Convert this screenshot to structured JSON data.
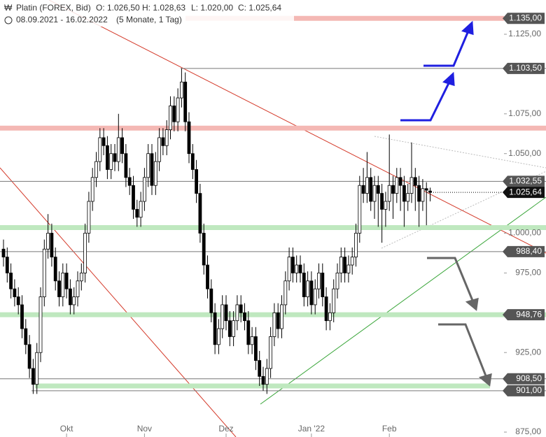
{
  "chart_data": {
    "type": "candlestick",
    "title": "Platin (FOREX, Bid)",
    "info_labels": [
      "O: 1.026,50",
      "H: 1.028,63",
      "L: 1.020,00",
      "C: 1.025,64"
    ],
    "range": "08.09.2021 - 16.02.2022",
    "interval": "(5 Monate, 1 Tag)",
    "ylim": [
      875,
      1135
    ],
    "yticks": [
      {
        "value": 875,
        "label": "875,00"
      },
      {
        "value": 925,
        "label": "925,00"
      },
      {
        "value": 975,
        "label": "975,00"
      },
      {
        "value": 1000,
        "label": "1.000,00"
      },
      {
        "value": 1050,
        "label": "1.050,00"
      },
      {
        "value": 1075,
        "label": "1.075,00"
      },
      {
        "value": 1125,
        "label": "1.125,00"
      }
    ],
    "xticks": [
      {
        "value": 17,
        "label": "Okt"
      },
      {
        "value": 38,
        "label": "Nov"
      },
      {
        "value": 60,
        "label": "Dez"
      },
      {
        "value": 83,
        "label": "Jan '22"
      },
      {
        "value": 104,
        "label": "Feb"
      }
    ],
    "up_color": "#ffffff",
    "down_color": "#000000",
    "price_label": "1.025,64",
    "levels": [
      {
        "value": 1135,
        "label": "1.135,00",
        "kind": "resistance"
      },
      {
        "value": 1103.5,
        "label": "1.103,50",
        "kind": "line"
      },
      {
        "value": 1066,
        "kind": "resistance"
      },
      {
        "value": 1032.55,
        "label": "1.032,55",
        "kind": "line"
      },
      {
        "value": 1003.5,
        "kind": "support"
      },
      {
        "value": 988.4,
        "label": "988,40",
        "kind": "line"
      },
      {
        "value": 948.76,
        "label": "948,76",
        "kind": "support"
      },
      {
        "value": 908.5,
        "label": "908,50",
        "kind": "line"
      },
      {
        "value": 904,
        "kind": "support"
      },
      {
        "value": 901,
        "label": "901,00",
        "kind": "line"
      }
    ],
    "ohlc": [
      [
        990,
        996,
        979,
        985
      ],
      [
        985,
        991,
        969,
        975
      ],
      [
        975,
        981,
        959,
        965
      ],
      [
        965,
        971,
        954,
        960
      ],
      [
        960,
        966,
        949,
        955
      ],
      [
        955,
        961,
        934,
        940
      ],
      [
        940,
        946,
        924,
        930
      ],
      [
        930,
        936,
        909,
        915
      ],
      [
        915,
        921,
        899,
        905
      ],
      [
        905,
        931,
        899,
        925
      ],
      [
        925,
        966,
        919,
        960
      ],
      [
        960,
        996,
        954,
        990
      ],
      [
        990,
        1012,
        984,
        1000
      ],
      [
        1000,
        1006,
        979,
        985
      ],
      [
        985,
        991,
        964,
        970
      ],
      [
        970,
        976,
        954,
        960
      ],
      [
        960,
        981,
        954,
        975
      ],
      [
        975,
        981,
        959,
        965
      ],
      [
        965,
        971,
        949,
        955
      ],
      [
        955,
        966,
        949,
        960
      ],
      [
        960,
        976,
        954,
        970
      ],
      [
        970,
        981,
        964,
        975
      ],
      [
        975,
        1006,
        969,
        1000
      ],
      [
        1000,
        1026,
        994,
        1020
      ],
      [
        1020,
        1041,
        1014,
        1035
      ],
      [
        1035,
        1051,
        1029,
        1045
      ],
      [
        1045,
        1066,
        1039,
        1060
      ],
      [
        1060,
        1066,
        1049,
        1055
      ],
      [
        1055,
        1061,
        1034,
        1040
      ],
      [
        1040,
        1056,
        1034,
        1050
      ],
      [
        1050,
        1056,
        1039,
        1045
      ],
      [
        1045,
        1075,
        1039,
        1060
      ],
      [
        1060,
        1066,
        1044,
        1050
      ],
      [
        1050,
        1056,
        1029,
        1035
      ],
      [
        1035,
        1041,
        1024,
        1030
      ],
      [
        1030,
        1036,
        1009,
        1015
      ],
      [
        1015,
        1021,
        1004,
        1010
      ],
      [
        1010,
        1026,
        1004,
        1020
      ],
      [
        1020,
        1041,
        1014,
        1035
      ],
      [
        1035,
        1056,
        1029,
        1050
      ],
      [
        1050,
        1056,
        1024,
        1030
      ],
      [
        1030,
        1051,
        1024,
        1045
      ],
      [
        1045,
        1066,
        1039,
        1060
      ],
      [
        1060,
        1066,
        1049,
        1055
      ],
      [
        1055,
        1071,
        1049,
        1065
      ],
      [
        1065,
        1086,
        1059,
        1080
      ],
      [
        1080,
        1086,
        1064,
        1070
      ],
      [
        1070,
        1091,
        1064,
        1085
      ],
      [
        1085,
        1103.5,
        1079,
        1095
      ],
      [
        1095,
        1101,
        1064,
        1070
      ],
      [
        1070,
        1076,
        1044,
        1050
      ],
      [
        1050,
        1056,
        1034,
        1040
      ],
      [
        1040,
        1046,
        1019,
        1025
      ],
      [
        1025,
        1031,
        994,
        1000
      ],
      [
        1000,
        1006,
        974,
        980
      ],
      [
        980,
        986,
        959,
        965
      ],
      [
        965,
        971,
        944,
        950
      ],
      [
        950,
        956,
        924,
        930
      ],
      [
        930,
        946,
        924,
        940
      ],
      [
        940,
        961,
        934,
        955
      ],
      [
        955,
        961,
        939,
        945
      ],
      [
        945,
        951,
        929,
        935
      ],
      [
        935,
        951,
        929,
        945
      ],
      [
        945,
        961,
        939,
        955
      ],
      [
        955,
        961,
        944,
        950
      ],
      [
        950,
        956,
        939,
        945
      ],
      [
        945,
        951,
        924,
        930
      ],
      [
        930,
        941,
        924,
        935
      ],
      [
        935,
        941,
        914,
        920
      ],
      [
        920,
        926,
        904,
        910
      ],
      [
        910,
        916,
        901,
        905
      ],
      [
        905,
        921,
        899,
        915
      ],
      [
        915,
        941,
        909,
        935
      ],
      [
        935,
        956,
        929,
        950
      ],
      [
        950,
        956,
        934,
        940
      ],
      [
        940,
        961,
        934,
        955
      ],
      [
        955,
        976,
        949,
        970
      ],
      [
        970,
        991,
        964,
        985
      ],
      [
        985,
        991,
        969,
        975
      ],
      [
        975,
        986,
        969,
        980
      ],
      [
        980,
        986,
        969,
        975
      ],
      [
        975,
        981,
        954,
        960
      ],
      [
        960,
        976,
        954,
        970
      ],
      [
        970,
        976,
        949,
        955
      ],
      [
        955,
        971,
        949,
        965
      ],
      [
        965,
        981,
        959,
        975
      ],
      [
        975,
        981,
        954,
        960
      ],
      [
        960,
        966,
        939,
        945
      ],
      [
        945,
        956,
        939,
        950
      ],
      [
        950,
        971,
        944,
        965
      ],
      [
        965,
        981,
        959,
        975
      ],
      [
        975,
        991,
        969,
        985
      ],
      [
        985,
        991,
        969,
        975
      ],
      [
        975,
        986,
        969,
        980
      ],
      [
        980,
        991,
        974,
        985
      ],
      [
        985,
        1006,
        979,
        1000
      ],
      [
        1000,
        1036,
        994,
        1030
      ],
      [
        1030,
        1041,
        1019,
        1025
      ],
      [
        1025,
        1051,
        1019,
        1035
      ],
      [
        1035,
        1041,
        1014,
        1020
      ],
      [
        1020,
        1036,
        1009,
        1030
      ],
      [
        1030,
        1036,
        1004,
        1025
      ],
      [
        1025,
        1031,
        994,
        1015
      ],
      [
        1015,
        1026,
        1004,
        1020
      ],
      [
        1020,
        1062,
        1014,
        1030
      ],
      [
        1030,
        1036,
        1009,
        1025
      ],
      [
        1025,
        1041,
        1019,
        1035
      ],
      [
        1035,
        1041,
        1014,
        1030
      ],
      [
        1030,
        1036,
        1004,
        1020
      ],
      [
        1020,
        1031,
        1014,
        1025
      ],
      [
        1025,
        1057,
        1019,
        1035
      ],
      [
        1035,
        1041,
        1014,
        1030
      ],
      [
        1030,
        1036,
        1004,
        1020
      ],
      [
        1020,
        1034,
        1014,
        1028
      ],
      [
        1028,
        1032,
        1005,
        1027
      ],
      [
        1026.5,
        1028.63,
        1020,
        1025.64
      ]
    ]
  }
}
